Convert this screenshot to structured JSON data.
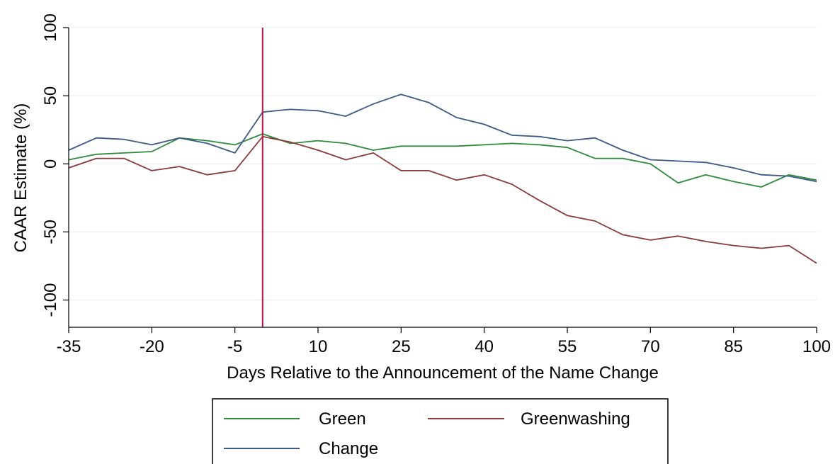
{
  "chart_data": {
    "type": "line",
    "title": "",
    "xlabel": "Days Relative to the Announcement of the Name Change",
    "ylabel": "CAAR Estimate (%)",
    "xlim": [
      -35,
      100
    ],
    "ylim": [
      -120,
      100
    ],
    "x_ticks": [
      -35,
      -20,
      -5,
      10,
      25,
      40,
      55,
      70,
      85,
      100
    ],
    "y_ticks": [
      100,
      50,
      0,
      -50,
      -100
    ],
    "grid": "horizontal",
    "event_line": {
      "x": 0,
      "color": "#c0174a"
    },
    "legend_position": "bottom",
    "x": [
      -35,
      -30,
      -25,
      -20,
      -15,
      -10,
      -5,
      0,
      5,
      10,
      15,
      20,
      25,
      30,
      35,
      40,
      45,
      50,
      55,
      60,
      65,
      70,
      75,
      80,
      85,
      90,
      95,
      100
    ],
    "series": [
      {
        "name": "Green",
        "color": "#2e8b3a",
        "values": [
          3,
          7,
          8,
          9,
          19,
          17,
          14,
          22,
          15,
          17,
          15,
          10,
          13,
          13,
          13,
          14,
          15,
          14,
          12,
          4,
          4,
          0,
          -14,
          -8,
          -13,
          -17,
          -8,
          -12
        ]
      },
      {
        "name": "Greenwashing",
        "color": "#8b3a3a",
        "values": [
          -3,
          4,
          4,
          -5,
          -2,
          -8,
          -5,
          20,
          16,
          10,
          3,
          8,
          -5,
          -5,
          -12,
          -8,
          -15,
          -27,
          -38,
          -42,
          -52,
          -56,
          -53,
          -57,
          -60,
          -62,
          -60,
          -73
        ]
      },
      {
        "name": "Change",
        "color": "#3c5a86",
        "values": [
          10,
          19,
          18,
          14,
          19,
          15,
          8,
          38,
          40,
          39,
          35,
          44,
          51,
          45,
          34,
          29,
          21,
          20,
          17,
          19,
          10,
          3,
          2,
          1,
          -3,
          -8,
          -9,
          -13
        ]
      }
    ]
  }
}
